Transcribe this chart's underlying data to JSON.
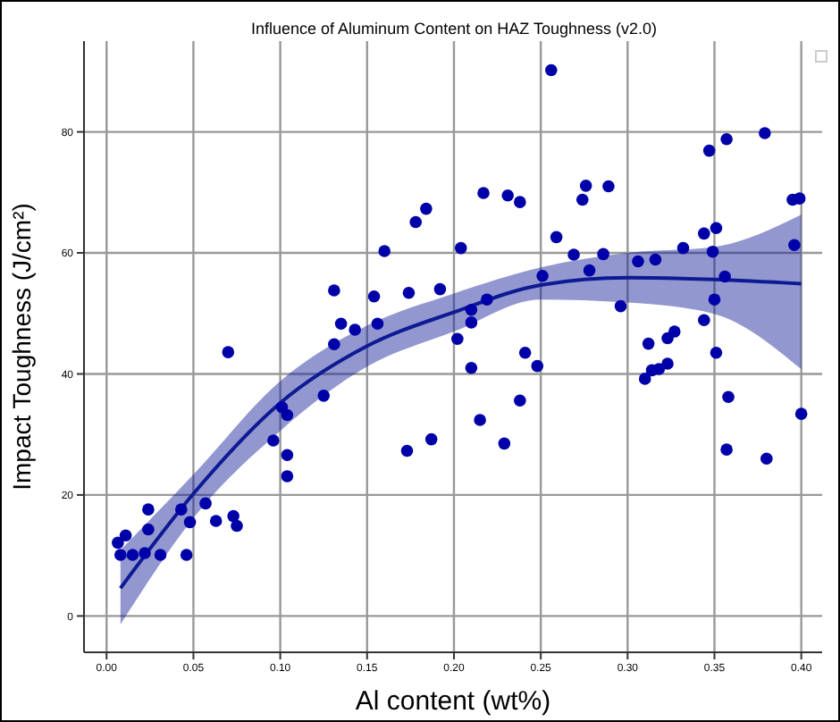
{
  "chart_data": {
    "type": "scatter",
    "title": "Influence of Aluminum Content on HAZ Toughness (v2.0)",
    "xlabel": "Al content (wt%)",
    "ylabel": "Impact Toughness (J/cm²)",
    "xlim": [
      -0.013,
      0.412
    ],
    "ylim": [
      -6,
      95
    ],
    "xticks": [
      {
        "value": 0,
        "label": "0.00"
      },
      {
        "value": 0.05,
        "label": "0.05"
      },
      {
        "value": 0.1,
        "label": "0.10"
      },
      {
        "value": 0.15,
        "label": "0.15"
      },
      {
        "value": 0.2,
        "label": "0.20"
      },
      {
        "value": 0.25,
        "label": "0.25"
      },
      {
        "value": 0.3,
        "label": "0.30"
      },
      {
        "value": 0.35,
        "label": "0.35"
      },
      {
        "value": 0.4,
        "label": "0.40"
      }
    ],
    "yticks": [
      0,
      20,
      40,
      60,
      80
    ],
    "grid": true,
    "legend": false,
    "marker": "circle",
    "series": [
      {
        "color": "#0000a8",
        "x": [
          0.0065,
          0.008,
          0.011,
          0.015,
          0.022,
          0.024,
          0.024,
          0.031,
          0.043,
          0.046,
          0.048,
          0.057,
          0.063,
          0.07,
          0.073,
          0.075,
          0.096,
          0.101,
          0.104,
          0.104,
          0.104,
          0.125,
          0.131,
          0.131,
          0.135,
          0.143,
          0.154,
          0.156,
          0.16,
          0.173,
          0.174,
          0.178,
          0.184,
          0.187,
          0.192,
          0.202,
          0.204,
          0.21,
          0.21,
          0.21,
          0.215,
          0.217,
          0.219,
          0.229,
          0.231,
          0.238,
          0.238,
          0.241,
          0.248,
          0.251,
          0.256,
          0.259,
          0.269,
          0.274,
          0.276,
          0.278,
          0.286,
          0.289,
          0.296,
          0.306,
          0.31,
          0.312,
          0.314,
          0.316,
          0.318,
          0.323,
          0.323,
          0.327,
          0.332,
          0.344,
          0.344,
          0.347,
          0.349,
          0.35,
          0.351,
          0.351,
          0.356,
          0.357,
          0.357,
          0.358,
          0.379,
          0.38,
          0.395,
          0.396,
          0.399,
          0.4
        ],
        "values": [
          12.1,
          10.1,
          13.3,
          10.1,
          10.4,
          17.6,
          14.3,
          10.1,
          17.6,
          10.1,
          15.5,
          18.6,
          15.7,
          43.6,
          16.5,
          14.9,
          29,
          34.5,
          33.2,
          26.6,
          23.1,
          36.4,
          53.8,
          44.9,
          48.3,
          47.3,
          52.8,
          48.3,
          60.3,
          27.3,
          53.4,
          65.1,
          67.3,
          29.2,
          54,
          45.8,
          60.8,
          50.6,
          48.5,
          41,
          32.4,
          69.9,
          52.3,
          28.5,
          69.5,
          35.6,
          68.4,
          43.5,
          41.3,
          56.2,
          90.2,
          62.6,
          59.7,
          68.8,
          71.1,
          57.1,
          59.8,
          71,
          51.2,
          58.6,
          39.2,
          45,
          40.6,
          58.9,
          40.8,
          41.7,
          45.9,
          47,
          60.8,
          48.9,
          63.2,
          76.9,
          60.2,
          52.3,
          64.1,
          43.5,
          56.1,
          78.8,
          27.5,
          36.2,
          79.8,
          26,
          68.8,
          61.3,
          69,
          33.4
        ]
      },
      {
        "type": "line",
        "color": "#0d1a94",
        "marker": "none",
        "line_style": "solid",
        "x": [
          0.008,
          0.05,
          0.1,
          0.15,
          0.2,
          0.25,
          0.3,
          0.35,
          0.4
        ],
        "values": [
          4.6,
          20.2,
          35.2,
          44.6,
          50.2,
          54.7,
          55.9,
          55.6,
          54.9
        ],
        "lower": [
          -1.4,
          16.2,
          30.6,
          41.2,
          47,
          52.3,
          51.8,
          49.9,
          40.8
        ],
        "upper": [
          10.9,
          23.4,
          38.8,
          48,
          53.3,
          57.6,
          60,
          61,
          66.3
        ]
      }
    ]
  }
}
